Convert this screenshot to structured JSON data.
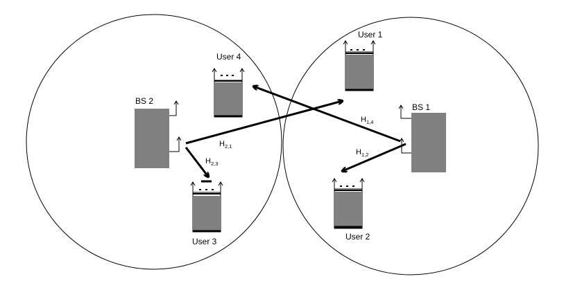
{
  "diagram": {
    "base_stations": [
      {
        "id": "bs2",
        "label": "BS 2"
      },
      {
        "id": "bs1",
        "label": "BS 1"
      }
    ],
    "users": [
      {
        "id": "user1",
        "label": "User 1"
      },
      {
        "id": "user2",
        "label": "User 2"
      },
      {
        "id": "user3",
        "label": "User 3"
      },
      {
        "id": "user4",
        "label": "User 4"
      }
    ],
    "channels": [
      {
        "id": "h21",
        "base": "H",
        "sub": "2,1"
      },
      {
        "id": "h23",
        "base": "H",
        "sub": "2,3"
      },
      {
        "id": "h14",
        "base": "H",
        "sub": "1,4"
      },
      {
        "id": "h12",
        "base": "H",
        "sub": "1,2"
      }
    ],
    "colors": {
      "box": "#808080",
      "line": "#000000",
      "background": "#ffffff"
    }
  }
}
